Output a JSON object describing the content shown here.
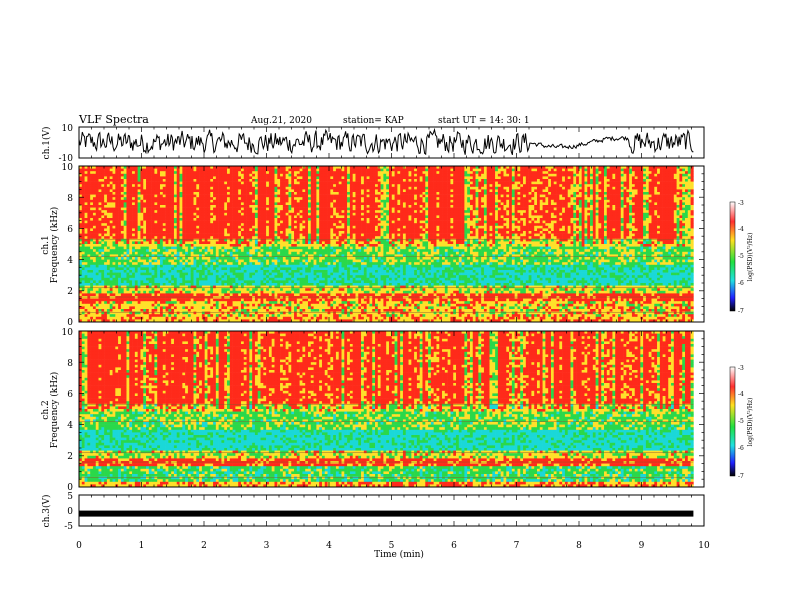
{
  "header": {
    "title": "VLF Spectra",
    "date": "Aug.21, 2020",
    "station": "station= KAP",
    "start": "start  UT =   14: 30: 1"
  },
  "chart_data": [
    {
      "type": "line",
      "name": "ch1-waveform",
      "ylabel": "ch.1(V)",
      "ylim": [
        -10,
        10
      ],
      "yticks": [
        "10",
        "-10"
      ],
      "xlim": [
        0,
        10
      ],
      "x_extent": [
        0,
        9.83
      ],
      "description_series": "noise waveform; high amplitude except calmer segment 7.2–8.8 min"
    },
    {
      "type": "heatmap",
      "name": "ch1-spectrogram",
      "ylabel": "Frequency (kHz)",
      "channel_label": "ch.1",
      "ylim": [
        0,
        10
      ],
      "yticks": [
        "0",
        "2",
        "4",
        "6",
        "8",
        "10"
      ],
      "xlim": [
        0,
        10
      ],
      "colorbar": {
        "label": "log(PSD)(V²/Hz)",
        "range": [
          -7,
          -3
        ],
        "ticks": [
          "-3",
          "-4",
          "-5",
          "-6",
          "-7"
        ]
      }
    },
    {
      "type": "heatmap",
      "name": "ch2-spectrogram",
      "ylabel": "Frequency (kHz)",
      "channel_label": "ch.2",
      "ylim": [
        0,
        10
      ],
      "yticks": [
        "0",
        "2",
        "4",
        "6",
        "8",
        "10"
      ],
      "xlim": [
        0,
        10
      ],
      "colorbar": {
        "label": "log(PSD)(V²/Hz)",
        "range": [
          -7,
          -3
        ],
        "ticks": [
          "-3",
          "-4",
          "-5",
          "-6",
          "-7"
        ]
      }
    },
    {
      "type": "line",
      "name": "ch3-waveform",
      "ylabel": "ch.3(V)",
      "ylim": [
        -5,
        5
      ],
      "yticks": [
        "5",
        "0",
        "-5"
      ],
      "xlim": [
        0,
        10
      ],
      "x_extent": [
        0,
        9.83
      ],
      "constant_value": -1
    }
  ],
  "xaxis": {
    "label": "Time  (min)",
    "ticks": [
      "0",
      "1",
      "2",
      "3",
      "4",
      "5",
      "6",
      "7",
      "8",
      "9",
      "10"
    ]
  },
  "colors": {
    "waveform": "#000000",
    "spectro_high": "#ff2a1a",
    "spectro_mid": "#ffe02a",
    "spectro_low": "#2ad84a",
    "spectro_min": "#1ad8d8"
  }
}
